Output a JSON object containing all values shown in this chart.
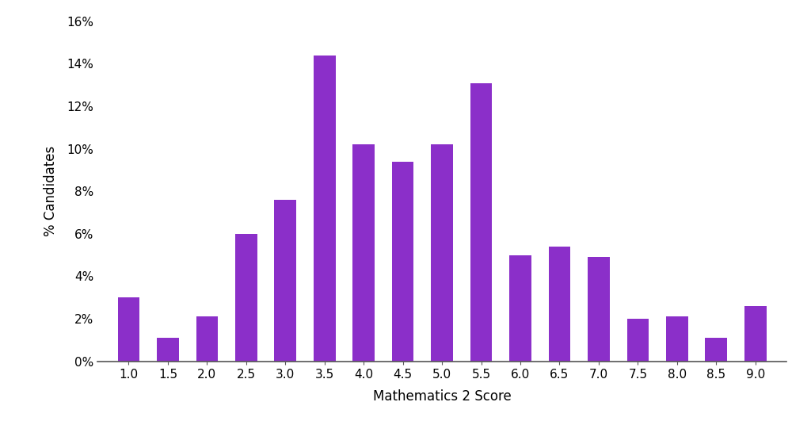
{
  "categories": [
    1.0,
    1.5,
    2.0,
    2.5,
    3.0,
    3.5,
    4.0,
    4.5,
    5.0,
    5.5,
    6.0,
    6.5,
    7.0,
    7.5,
    8.0,
    8.5,
    9.0
  ],
  "values": [
    3.0,
    1.1,
    2.1,
    6.0,
    7.6,
    14.4,
    10.2,
    9.4,
    10.2,
    13.1,
    5.0,
    5.4,
    4.9,
    2.0,
    2.1,
    1.1,
    2.6
  ],
  "bar_color": "#8B2FC9",
  "xlabel": "Mathematics 2 Score",
  "ylabel": "% Candidates",
  "ylim": [
    0,
    16
  ],
  "yticks": [
    0,
    2,
    4,
    6,
    8,
    10,
    12,
    14,
    16
  ],
  "background_color": "#ffffff",
  "bar_width": 0.28,
  "xlabel_fontsize": 12,
  "ylabel_fontsize": 12,
  "tick_fontsize": 11
}
